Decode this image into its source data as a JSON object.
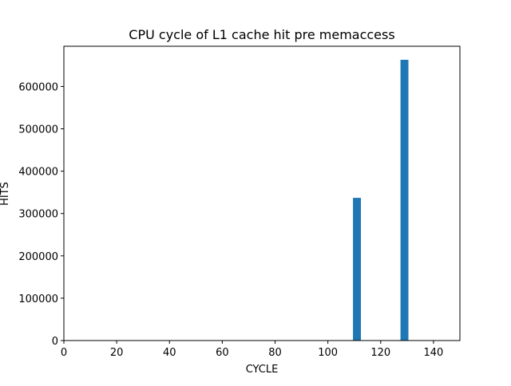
{
  "chart_data": {
    "type": "bar",
    "title": "CPU cycle of L1 cache hit pre memaccess",
    "xlabel": "CYCLE",
    "ylabel": "HITS",
    "xlim": [
      0,
      150
    ],
    "ylim": [
      0,
      695000
    ],
    "x_ticks": [
      0,
      20,
      40,
      60,
      80,
      100,
      120,
      140
    ],
    "y_ticks": [
      0,
      100000,
      200000,
      300000,
      400000,
      500000,
      600000
    ],
    "bar_width": 3,
    "bars": [
      {
        "x": 111,
        "value": 337000
      },
      {
        "x": 129,
        "value": 663000
      }
    ],
    "grid": false,
    "bar_color": "#1f77b4"
  }
}
